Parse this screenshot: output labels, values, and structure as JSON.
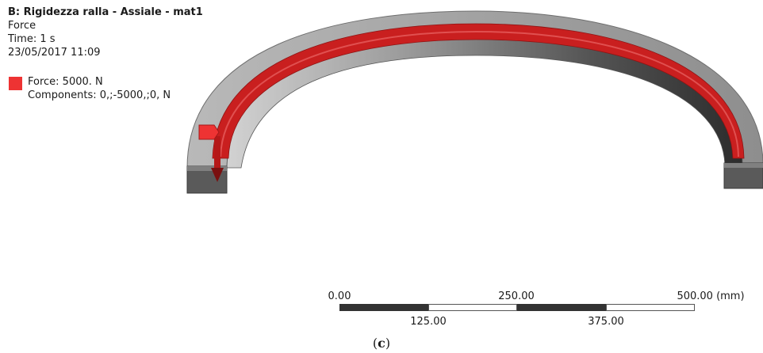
{
  "header": {
    "title": "B: Rigidezza ralla - Assiale - mat1",
    "line_type": "Force",
    "line_time": "Time: 1  s",
    "line_date": "23/05/2017 11:09"
  },
  "legend": {
    "swatch_color": "#ee3333",
    "force_label": "Force: 5000. N",
    "components_label": "Components: 0,;-5000,;0, N"
  },
  "scale": {
    "top_labels": [
      "0.00",
      "250.00",
      "500.00 (mm)"
    ],
    "bottom_labels": [
      "125.00",
      "375.00"
    ]
  },
  "caption": {
    "open": "(",
    "letter": "c",
    "close": ")"
  },
  "colors": {
    "ring_light": "#a9a9a9",
    "ring_dark": "#3c3c3c",
    "load_red": "#c91f1f"
  }
}
